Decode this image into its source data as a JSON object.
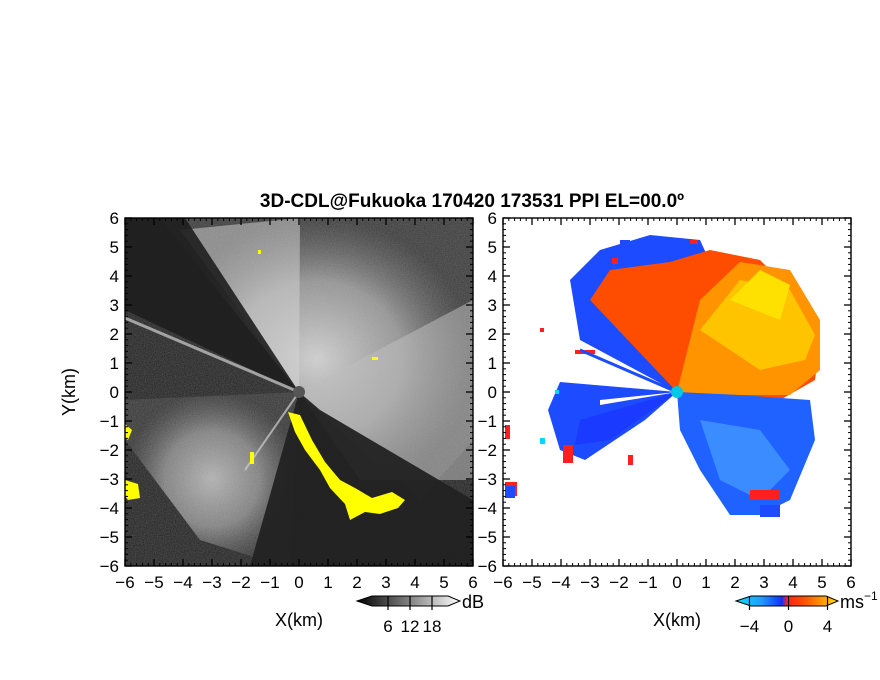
{
  "chart_data": {
    "title": "3D-CDL@Fukuoka 170420 173531 PPI EL=00.0º",
    "panels": [
      {
        "id": "snr",
        "type": "heatmap",
        "colormap": "grayscale",
        "highlight_color": "#ffff00",
        "xlabel": "X(km)",
        "ylabel": "Y(km)",
        "xlim": [
          -6,
          6
        ],
        "ylim": [
          -6,
          6
        ],
        "x_ticks": [
          -6,
          -5,
          -4,
          -3,
          -2,
          -1,
          0,
          1,
          2,
          3,
          4,
          5,
          6
        ],
        "y_ticks": [
          -6,
          -5,
          -4,
          -3,
          -2,
          -1,
          0,
          1,
          2,
          3,
          4,
          5,
          6
        ],
        "colorbar": {
          "unit": "dB",
          "ticks": [
            6,
            12,
            18
          ],
          "range": [
            0,
            24
          ]
        }
      },
      {
        "id": "doppler",
        "type": "heatmap",
        "colormap": "cyan-blue-red-orange-yellow",
        "xlabel": "X(km)",
        "ylabel": "",
        "xlim": [
          -6,
          6
        ],
        "ylim": [
          -6,
          6
        ],
        "x_ticks": [
          -6,
          -5,
          -4,
          -3,
          -2,
          -1,
          0,
          1,
          2,
          3,
          4,
          5,
          6
        ],
        "y_ticks": [
          -6,
          -5,
          -4,
          -3,
          -2,
          -1,
          0,
          1,
          2,
          3,
          4,
          5,
          6
        ],
        "colorbar": {
          "unit": "ms",
          "unit_exponent": "−1",
          "ticks": [
            -4,
            0,
            4
          ],
          "range": [
            -6,
            6
          ]
        }
      }
    ]
  }
}
